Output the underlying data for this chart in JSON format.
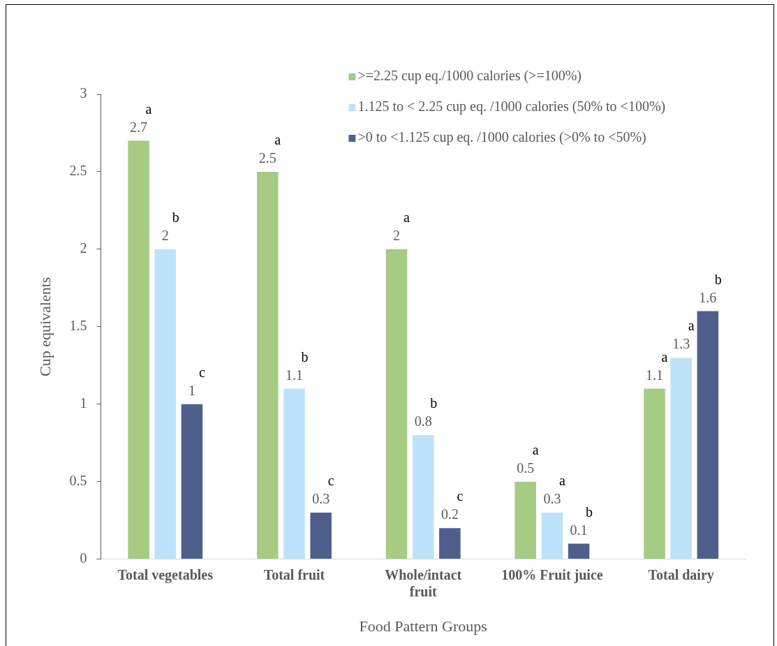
{
  "chart_data": {
    "type": "bar",
    "xlabel": "Food Pattern Groups",
    "ylabel": "Cup equivalents",
    "categories": [
      "Total vegetables",
      "Total fruit",
      "Whole/intact fruit",
      "100% Fruit juice",
      "Total dairy"
    ],
    "series": [
      {
        "name": ">=2.25 cup eq./1000 calories (>=100%)",
        "color": "#a5cc82",
        "values": [
          2.7,
          2.5,
          2,
          0.5,
          1.1
        ]
      },
      {
        "name": "1.125 to < 2.25 cup eq. /1000 calories (50% to <100%)",
        "color": "#bde3fb",
        "values": [
          2,
          1.1,
          0.8,
          0.3,
          1.3
        ]
      },
      {
        "name": ">0 to <1.125 cup eq. /1000 calories (>0% to <50%)",
        "color": "#4f5f8c",
        "values": [
          1,
          0.3,
          0.2,
          0.1,
          1.6
        ]
      }
    ],
    "ylim": [
      0,
      3
    ],
    "yticks": [
      0,
      0.5,
      1,
      1.5,
      2,
      2.5,
      3
    ],
    "grid": false,
    "legend": "top right",
    "data_labels": true,
    "annotations": [
      "a",
      "b",
      "c",
      "a",
      "b",
      "c",
      "a",
      "b",
      "c",
      "a",
      "a",
      "b",
      "a",
      "a",
      "b"
    ]
  }
}
